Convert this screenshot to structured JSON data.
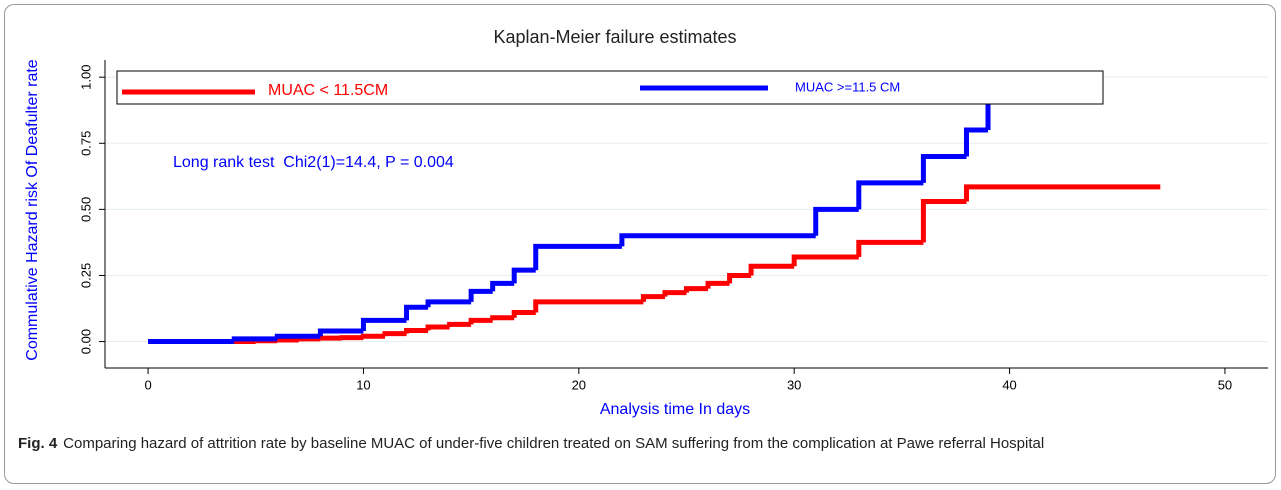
{
  "chart_data": {
    "type": "step",
    "title": "Kaplan-Meier failure estimates",
    "x_label": "Analysis time In days",
    "y_label": "Commulative Hazard risk Of Deafulter rate",
    "annotation": "Long rank test  Chi2(1)=14.4, P = 0.004",
    "xlim": [
      -2,
      52
    ],
    "ylim": [
      -0.1,
      1.065
    ],
    "xticks": [
      0,
      10,
      20,
      30,
      40,
      50
    ],
    "yticks": [
      {
        "value": 0,
        "label": "0.00"
      },
      {
        "value": 0.25,
        "label": "0.25"
      },
      {
        "value": 0.5,
        "label": "0.50"
      },
      {
        "value": 0.75,
        "label": "0.75"
      },
      {
        "value": 1,
        "label": "1.00"
      }
    ],
    "grid": true,
    "series": [
      {
        "name": "MUAC < 11.5CM",
        "color": "#ff0000",
        "x": [
          0,
          5,
          6,
          7,
          8,
          9,
          10,
          11,
          12,
          13,
          14,
          15,
          16,
          17,
          18,
          23,
          24,
          25,
          26,
          27,
          28,
          30,
          33,
          36,
          38,
          47
        ],
        "values": [
          0,
          0.003,
          0.006,
          0.01,
          0.013,
          0.015,
          0.02,
          0.03,
          0.042,
          0.055,
          0.065,
          0.08,
          0.09,
          0.11,
          0.15,
          0.17,
          0.185,
          0.2,
          0.22,
          0.25,
          0.285,
          0.32,
          0.375,
          0.53,
          0.585,
          0.585
        ]
      },
      {
        "name": "MUAC >=11.5 CM",
        "color": "#0000ff",
        "x": [
          0,
          4,
          6,
          8,
          10,
          12,
          13,
          15,
          16,
          17,
          18,
          22,
          31,
          33,
          36,
          38,
          39
        ],
        "values": [
          0,
          0.01,
          0.02,
          0.04,
          0.08,
          0.13,
          0.15,
          0.19,
          0.22,
          0.27,
          0.36,
          0.4,
          0.5,
          0.6,
          0.7,
          0.8,
          0.9
        ]
      }
    ]
  },
  "caption": {
    "label": "Fig. 4",
    "text": "Comparing hazard of attrition rate by baseline MUAC of under-five children treated on SAM suffering from the complication at Pawe referral Hospital"
  }
}
